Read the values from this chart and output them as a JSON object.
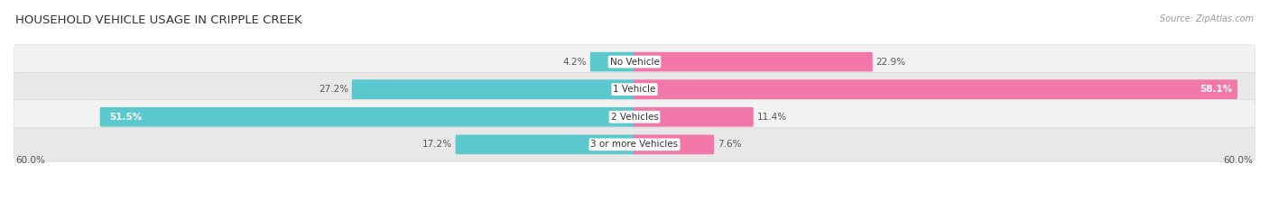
{
  "title": "HOUSEHOLD VEHICLE USAGE IN CRIPPLE CREEK",
  "source": "Source: ZipAtlas.com",
  "categories": [
    "No Vehicle",
    "1 Vehicle",
    "2 Vehicles",
    "3 or more Vehicles"
  ],
  "owner_values": [
    4.2,
    27.2,
    51.5,
    17.2
  ],
  "renter_values": [
    22.9,
    58.1,
    11.4,
    7.6
  ],
  "max_val": 60.0,
  "owner_color": "#5BC8CD",
  "renter_color": "#F178A8",
  "owner_color_light": "#8DD9DC",
  "renter_color_light": "#F7AECB",
  "row_bg_even": "#F2F2F2",
  "row_bg_odd": "#E8E8E8",
  "title_fontsize": 9.5,
  "label_fontsize": 7.5,
  "value_fontsize": 7.5,
  "axis_label_fontsize": 7.5,
  "legend_fontsize": 8,
  "x_axis_left": "60.0%",
  "x_axis_right": "60.0%"
}
